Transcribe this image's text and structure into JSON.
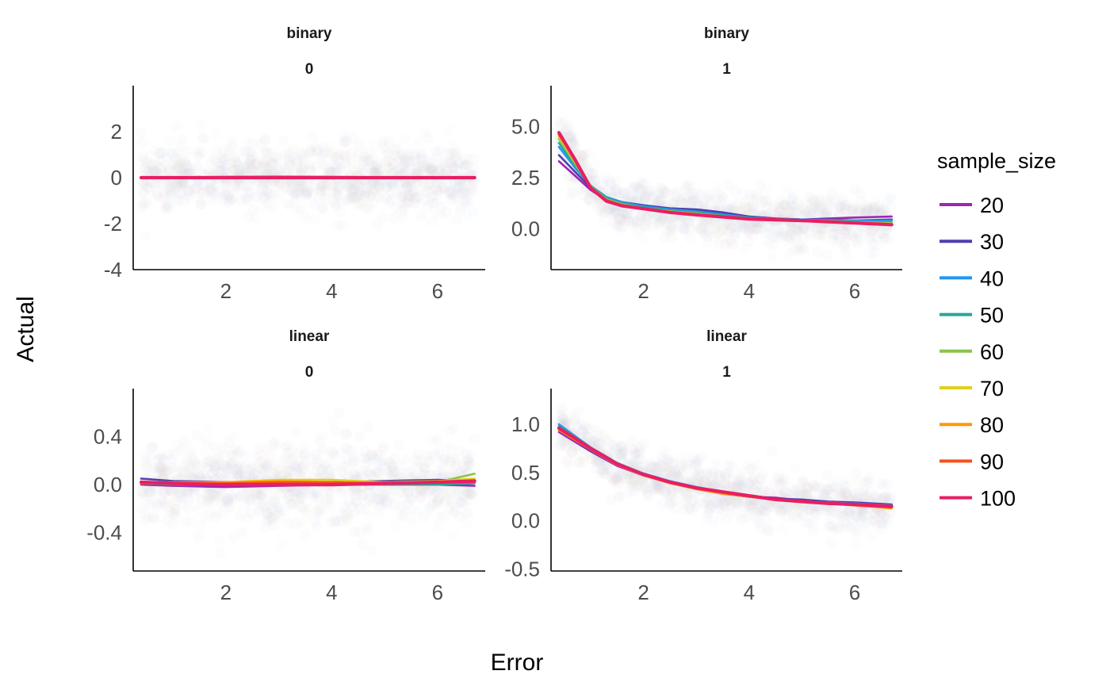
{
  "chart_data": {
    "type": "line",
    "xlabel": "Error",
    "ylabel": "Actual",
    "legend": {
      "title": "sample_size",
      "position": "right",
      "entries": [
        {
          "label": "20",
          "color": "#9c27b0"
        },
        {
          "label": "30",
          "color": "#4e3fb0"
        },
        {
          "label": "40",
          "color": "#2196f3"
        },
        {
          "label": "50",
          "color": "#26a69a"
        },
        {
          "label": "60",
          "color": "#8bc34a"
        },
        {
          "label": "70",
          "color": "#e0cf1c"
        },
        {
          "label": "80",
          "color": "#ff9800"
        },
        {
          "label": "90",
          "color": "#f4511e"
        },
        {
          "label": "100",
          "color": "#e91e63"
        }
      ]
    },
    "panels": [
      {
        "strip": [
          "binary",
          "0"
        ],
        "xlim": [
          0.25,
          6.9
        ],
        "ylim": [
          -4,
          4
        ],
        "xticks": [
          2,
          4,
          6
        ],
        "yticks": [
          -4,
          -2,
          0,
          2
        ],
        "ytick_labels": [
          "-4",
          "-2",
          "0",
          "2"
        ],
        "x": [
          0.4,
          1.0,
          2.0,
          3.0,
          4.0,
          5.0,
          6.0,
          6.7
        ],
        "series": [
          {
            "label": "20",
            "values": [
              0.02,
              0.02,
              0.03,
              0.04,
              0.03,
              0.02,
              0.02,
              0.02
            ]
          },
          {
            "label": "30",
            "values": [
              0.0,
              0.01,
              0.02,
              0.02,
              0.02,
              0.01,
              0.01,
              0.01
            ]
          },
          {
            "label": "40",
            "values": [
              0.01,
              0.0,
              0.01,
              0.02,
              0.01,
              0.0,
              0.01,
              0.02
            ]
          },
          {
            "label": "50",
            "values": [
              0.0,
              0.01,
              0.0,
              0.01,
              0.01,
              0.0,
              0.0,
              0.01
            ]
          },
          {
            "label": "60",
            "values": [
              0.02,
              0.02,
              0.01,
              0.0,
              0.01,
              0.02,
              0.02,
              0.02
            ]
          },
          {
            "label": "70",
            "values": [
              0.01,
              0.01,
              0.01,
              0.01,
              0.0,
              0.01,
              0.01,
              0.0
            ]
          },
          {
            "label": "80",
            "values": [
              0.0,
              0.0,
              0.0,
              0.01,
              0.01,
              0.01,
              0.0,
              0.0
            ]
          },
          {
            "label": "90",
            "values": [
              0.01,
              0.01,
              0.0,
              0.0,
              0.0,
              0.01,
              0.01,
              0.01
            ]
          },
          {
            "label": "100",
            "values": [
              0.0,
              0.0,
              0.0,
              0.0,
              0.0,
              0.0,
              0.0,
              0.0
            ]
          }
        ]
      },
      {
        "strip": [
          "binary",
          "1"
        ],
        "xlim": [
          0.25,
          6.9
        ],
        "ylim": [
          -2,
          7
        ],
        "xticks": [
          2,
          4,
          6
        ],
        "yticks": [
          0,
          2.5,
          5
        ],
        "ytick_labels": [
          "0.0",
          "2.5",
          "5.0"
        ],
        "x": [
          0.4,
          0.7,
          1.0,
          1.3,
          1.6,
          2.0,
          2.5,
          3.0,
          3.5,
          4.0,
          4.5,
          5.0,
          5.5,
          6.0,
          6.7
        ],
        "series": [
          {
            "label": "20",
            "values": [
              3.3,
              2.6,
              1.9,
              1.4,
              1.2,
              1.05,
              0.95,
              0.9,
              0.75,
              0.6,
              0.5,
              0.45,
              0.5,
              0.55,
              0.6
            ]
          },
          {
            "label": "30",
            "values": [
              3.6,
              2.8,
              2.0,
              1.5,
              1.3,
              1.15,
              1.0,
              0.95,
              0.8,
              0.6,
              0.5,
              0.45,
              0.45,
              0.4,
              0.45
            ]
          },
          {
            "label": "40",
            "values": [
              4.0,
              3.0,
              2.1,
              1.55,
              1.3,
              1.1,
              0.95,
              0.85,
              0.7,
              0.55,
              0.48,
              0.45,
              0.42,
              0.4,
              0.4
            ]
          },
          {
            "label": "50",
            "values": [
              4.2,
              3.1,
              2.1,
              1.5,
              1.25,
              1.05,
              0.9,
              0.8,
              0.65,
              0.55,
              0.48,
              0.43,
              0.4,
              0.35,
              0.3
            ]
          },
          {
            "label": "60",
            "values": [
              4.4,
              3.2,
              2.05,
              1.45,
              1.2,
              1.0,
              0.85,
              0.75,
              0.62,
              0.5,
              0.45,
              0.4,
              0.38,
              0.33,
              0.28
            ]
          },
          {
            "label": "70",
            "values": [
              4.5,
              3.3,
              2.05,
              1.4,
              1.15,
              1.0,
              0.85,
              0.72,
              0.6,
              0.5,
              0.45,
              0.4,
              0.35,
              0.3,
              0.25
            ]
          },
          {
            "label": "80",
            "values": [
              4.6,
              3.35,
              2.0,
              1.4,
              1.15,
              1.0,
              0.82,
              0.7,
              0.6,
              0.5,
              0.44,
              0.4,
              0.35,
              0.3,
              0.22
            ]
          },
          {
            "label": "90",
            "values": [
              4.6,
              3.4,
              2.0,
              1.4,
              1.15,
              1.0,
              0.8,
              0.7,
              0.58,
              0.5,
              0.44,
              0.4,
              0.34,
              0.28,
              0.2
            ]
          },
          {
            "label": "100",
            "values": [
              4.7,
              3.4,
              2.0,
              1.35,
              1.12,
              0.98,
              0.8,
              0.68,
              0.58,
              0.48,
              0.44,
              0.4,
              0.34,
              0.28,
              0.2
            ]
          }
        ]
      },
      {
        "strip": [
          "linear",
          "0"
        ],
        "xlim": [
          0.25,
          6.9
        ],
        "ylim": [
          -0.72,
          0.8
        ],
        "xticks": [
          2,
          4,
          6
        ],
        "yticks": [
          -0.4,
          0,
          0.4
        ],
        "ytick_labels": [
          "-0.4",
          "0.0",
          "0.4"
        ],
        "x": [
          0.4,
          1.0,
          2.0,
          3.0,
          4.0,
          5.0,
          6.0,
          6.7
        ],
        "series": [
          {
            "label": "20",
            "values": [
              0.0,
              -0.01,
              -0.02,
              -0.01,
              0.0,
              0.0,
              0.0,
              -0.01
            ]
          },
          {
            "label": "30",
            "values": [
              0.05,
              0.03,
              0.02,
              0.02,
              0.02,
              0.03,
              0.04,
              0.03
            ]
          },
          {
            "label": "40",
            "values": [
              0.02,
              0.01,
              0.0,
              0.02,
              0.02,
              0.02,
              0.01,
              0.02
            ]
          },
          {
            "label": "50",
            "values": [
              0.01,
              0.0,
              0.0,
              0.0,
              0.01,
              0.0,
              0.0,
              0.01
            ]
          },
          {
            "label": "60",
            "values": [
              0.02,
              0.01,
              0.0,
              0.0,
              0.01,
              0.01,
              0.02,
              0.09
            ]
          },
          {
            "label": "70",
            "values": [
              0.01,
              0.01,
              0.02,
              0.04,
              0.04,
              0.02,
              0.03,
              0.05
            ]
          },
          {
            "label": "80",
            "values": [
              0.02,
              0.02,
              0.02,
              0.03,
              0.02,
              0.02,
              0.02,
              0.03
            ]
          },
          {
            "label": "90",
            "values": [
              0.01,
              0.01,
              0.01,
              0.02,
              0.02,
              0.01,
              0.02,
              0.02
            ]
          },
          {
            "label": "100",
            "values": [
              0.02,
              0.01,
              0.0,
              0.0,
              0.0,
              0.01,
              0.02,
              0.03
            ]
          }
        ]
      },
      {
        "strip": [
          "linear",
          "1"
        ],
        "xlim": [
          0.25,
          6.9
        ],
        "ylim": [
          -0.52,
          1.37
        ],
        "xticks": [
          2,
          4,
          6
        ],
        "yticks": [
          -0.5,
          0,
          0.5,
          1
        ],
        "ytick_labels": [
          "-0.5",
          "0.0",
          "0.5",
          "1.0"
        ],
        "x": [
          0.4,
          1.0,
          1.5,
          2.0,
          2.5,
          3.0,
          3.5,
          4.0,
          4.5,
          5.0,
          5.5,
          6.0,
          6.7
        ],
        "series": [
          {
            "label": "20",
            "values": [
              0.92,
              0.72,
              0.57,
              0.47,
              0.4,
              0.33,
              0.28,
              0.25,
              0.24,
              0.21,
              0.19,
              0.17,
              0.15
            ]
          },
          {
            "label": "30",
            "values": [
              0.96,
              0.73,
              0.58,
              0.49,
              0.41,
              0.35,
              0.3,
              0.26,
              0.23,
              0.22,
              0.2,
              0.19,
              0.17
            ]
          },
          {
            "label": "40",
            "values": [
              1.0,
              0.76,
              0.6,
              0.49,
              0.41,
              0.35,
              0.3,
              0.26,
              0.22,
              0.2,
              0.19,
              0.18,
              0.16
            ]
          },
          {
            "label": "50",
            "values": [
              0.98,
              0.76,
              0.6,
              0.48,
              0.4,
              0.34,
              0.29,
              0.25,
              0.22,
              0.2,
              0.18,
              0.17,
              0.16
            ]
          },
          {
            "label": "60",
            "values": [
              0.96,
              0.75,
              0.59,
              0.48,
              0.4,
              0.34,
              0.29,
              0.25,
              0.22,
              0.2,
              0.18,
              0.17,
              0.15
            ]
          },
          {
            "label": "70",
            "values": [
              0.95,
              0.74,
              0.58,
              0.47,
              0.4,
              0.34,
              0.29,
              0.25,
              0.22,
              0.2,
              0.18,
              0.16,
              0.14
            ]
          },
          {
            "label": "80",
            "values": [
              0.94,
              0.74,
              0.58,
              0.47,
              0.39,
              0.33,
              0.28,
              0.25,
              0.22,
              0.2,
              0.18,
              0.16,
              0.13
            ]
          },
          {
            "label": "90",
            "values": [
              0.95,
              0.75,
              0.59,
              0.48,
              0.4,
              0.34,
              0.29,
              0.25,
              0.22,
              0.2,
              0.18,
              0.16,
              0.14
            ]
          },
          {
            "label": "100",
            "values": [
              0.96,
              0.75,
              0.59,
              0.48,
              0.4,
              0.34,
              0.3,
              0.26,
              0.22,
              0.2,
              0.18,
              0.17,
              0.15
            ]
          }
        ]
      }
    ]
  }
}
